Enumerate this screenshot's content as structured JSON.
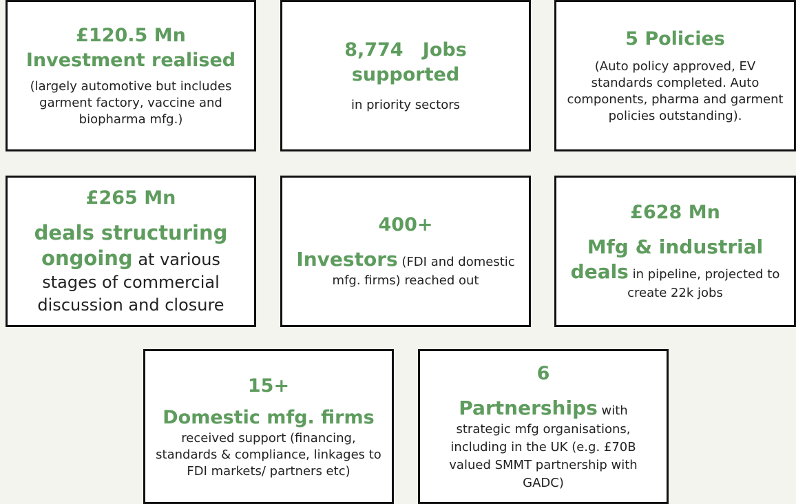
{
  "cards": [
    {
      "headline": "£120.5 Mn",
      "title": "Investment realised",
      "text": "(largely automotive but includes garment factory, vaccine and biopharma mfg.)"
    },
    {
      "title": "8,774   Jobs supported",
      "text": "in priority sectors"
    },
    {
      "title": "5 Policies",
      "text": "(Auto policy approved, EV standards completed. Auto components, pharma and garment policies outstanding)."
    },
    {
      "headline": "£265 Mn",
      "title": "deals structuring ongoing",
      "text": "at various stages of commercial discussion and closure"
    },
    {
      "headline": "400+",
      "title": "Investors",
      "text": "(FDI and domestic mfg. firms) reached out"
    },
    {
      "headline": "£628 Mn",
      "title": "Mfg & industrial deals",
      "text": "in pipeline, projected to create 22k jobs"
    },
    {
      "headline": "15+",
      "title": "Domestic mfg. firms",
      "text": "received support (financing, standards & compliance, linkages to FDI markets/ partners etc)"
    },
    {
      "headline": "6",
      "title": "Partnerships",
      "text": "with strategic mfg organisations, including in the UK (e.g. £70B valued SMMT partnership with GADC)"
    }
  ]
}
